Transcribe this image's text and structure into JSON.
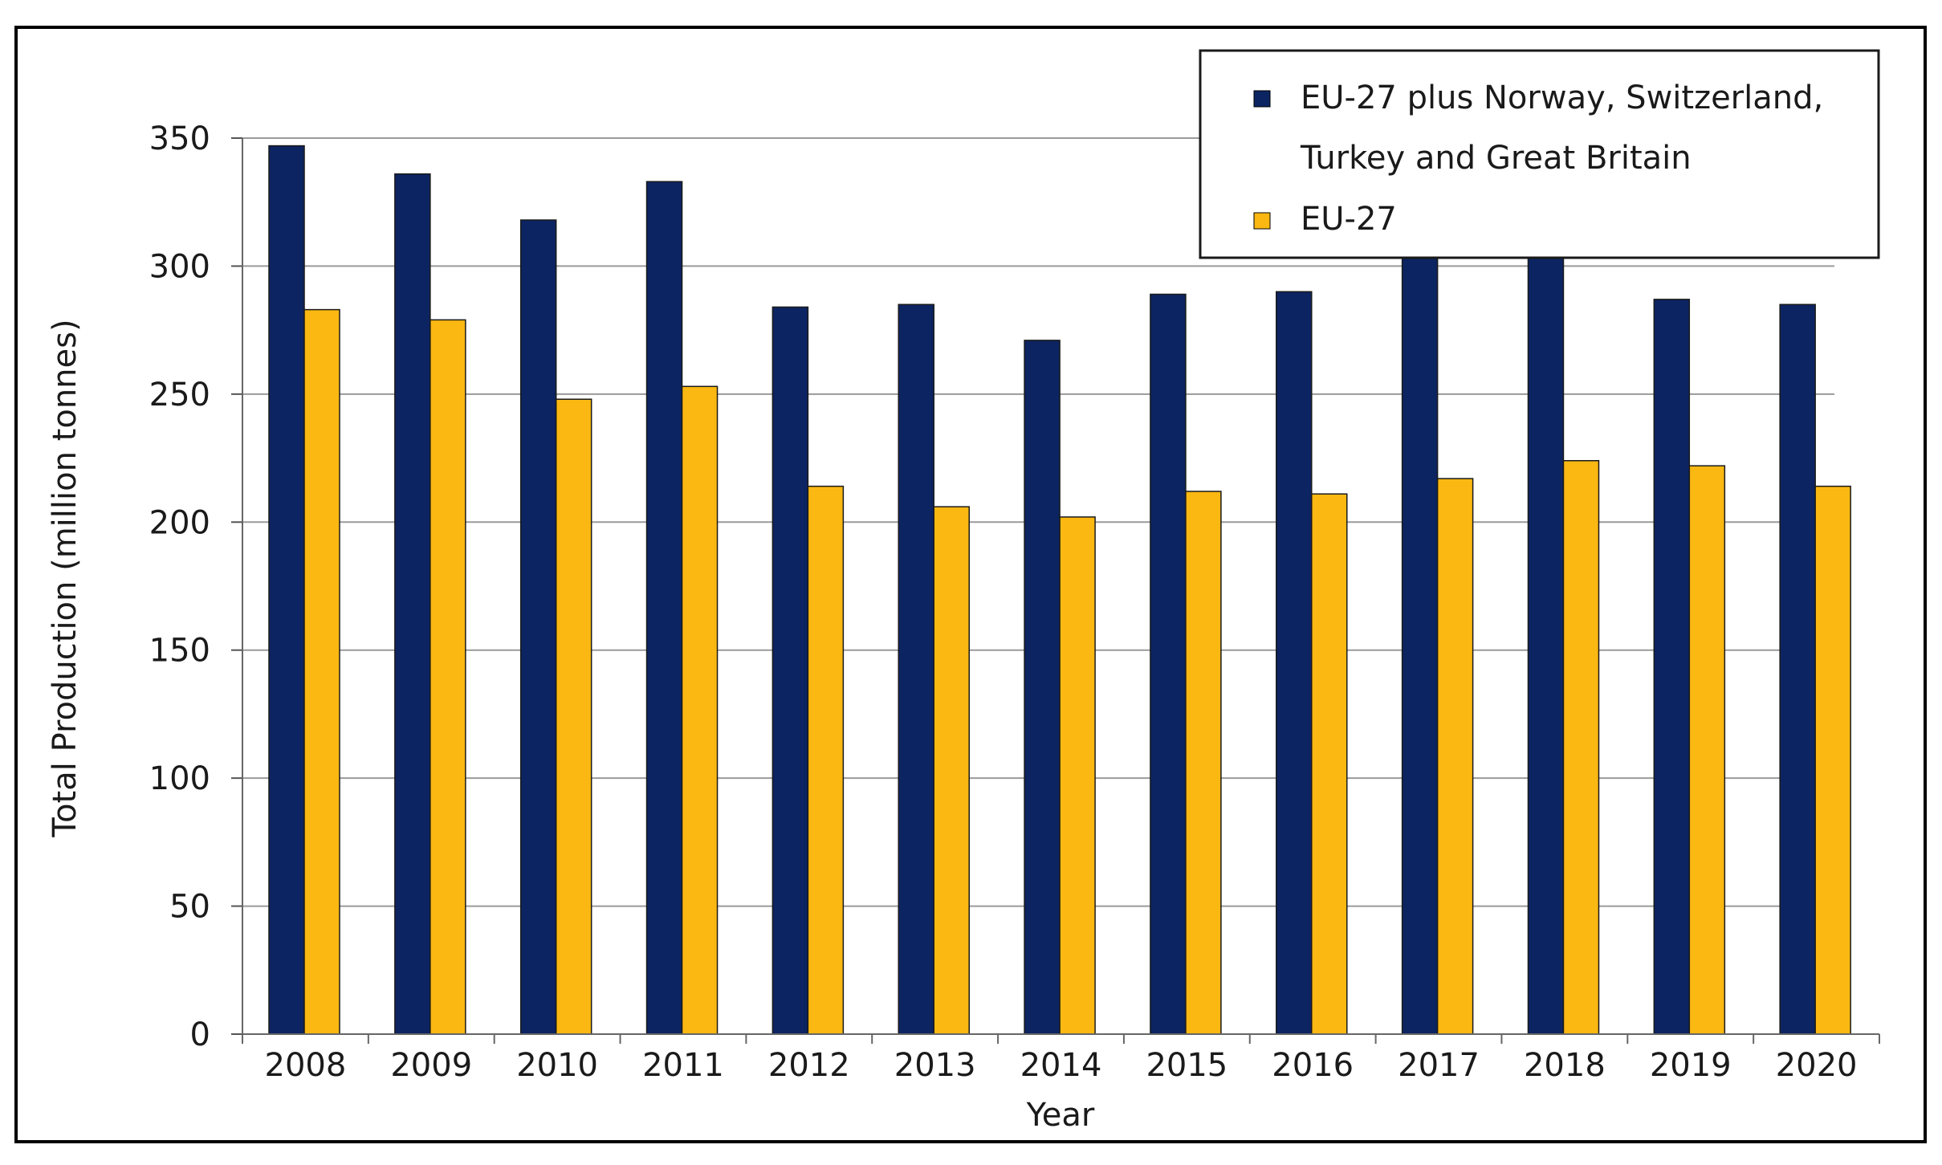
{
  "chart_data": {
    "type": "bar",
    "title": "",
    "xlabel": "Year",
    "ylabel": "Total Production (million tonnes)",
    "ylim": [
      0,
      350
    ],
    "yticks": [
      0,
      50,
      100,
      150,
      200,
      250,
      300,
      350
    ],
    "grid": true,
    "legend_position": "top-right",
    "categories": [
      "2008",
      "2009",
      "2010",
      "2011",
      "2012",
      "2013",
      "2014",
      "2015",
      "2016",
      "2017",
      "2018",
      "2019",
      "2020"
    ],
    "series": [
      {
        "name": "EU-27 plus Norway, Switzerland, Turkey and Great Britain",
        "legend_lines": [
          "EU-27 plus  Norway, Switzerland,",
          "Turkey and  Great  Britain"
        ],
        "color": "#0c2461",
        "values": [
          347,
          336,
          318,
          333,
          284,
          285,
          271,
          289,
          290,
          305,
          306,
          287,
          285
        ]
      },
      {
        "name": "EU-27",
        "legend_lines": [
          "EU-27"
        ],
        "color": "#fbb812",
        "values": [
          283,
          279,
          248,
          253,
          214,
          206,
          202,
          212,
          211,
          217,
          224,
          222,
          214
        ]
      }
    ]
  }
}
